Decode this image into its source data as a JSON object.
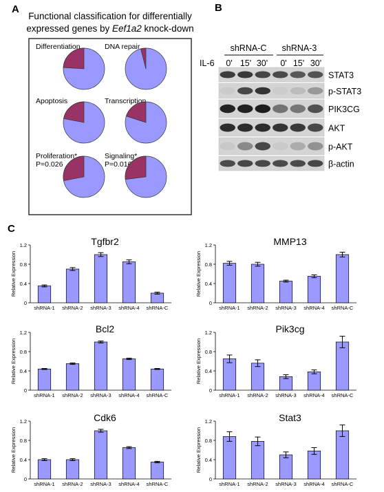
{
  "panels": {
    "a": "A",
    "b": "B",
    "c": "C"
  },
  "panelA": {
    "title_line1": "Functional classification for differentially",
    "title_line2_pre": "expressed genes by ",
    "title_line2_em": "Eef1a2",
    "title_line2_post": " knock-down",
    "pies": [
      {
        "label": "Differentiation",
        "pvalue": "",
        "fraction": 0.24
      },
      {
        "label": "DNA repair",
        "pvalue": "",
        "fraction": 0.04
      },
      {
        "label": "Apoptosis",
        "pvalue": "",
        "fraction": 0.22
      },
      {
        "label": "Transcription",
        "pvalue": "",
        "fraction": 0.2
      },
      {
        "label": "Proliferation*",
        "pvalue": "P=0.026",
        "fraction": 0.28
      },
      {
        "label": "Signaling*",
        "pvalue": "P=0.016",
        "fraction": 0.27
      }
    ],
    "colors": {
      "main": "#9999ff",
      "slice": "#993366"
    }
  },
  "panelB": {
    "treatment": "IL-6",
    "groups": [
      "shRNA-C",
      "shRNA-3"
    ],
    "timepoints": [
      "0'",
      "15'",
      "30'",
      "0'",
      "15'",
      "30'"
    ],
    "rows": [
      {
        "label": "STAT3",
        "intensity": [
          0.78,
          0.8,
          0.74,
          0.7,
          0.64,
          0.66
        ]
      },
      {
        "label": "p-STAT3",
        "intensity": [
          0.05,
          0.72,
          0.82,
          0.04,
          0.12,
          0.3
        ]
      },
      {
        "label": "PIK3CG",
        "intensity": [
          0.9,
          0.92,
          0.94,
          0.5,
          0.48,
          0.68
        ]
      },
      {
        "label": "AKT",
        "intensity": [
          0.86,
          0.86,
          0.86,
          0.82,
          0.8,
          0.72
        ]
      },
      {
        "label": "p-AKT",
        "intensity": [
          0.06,
          0.38,
          0.72,
          0.05,
          0.2,
          0.34
        ]
      },
      {
        "label": "β-actin",
        "intensity": [
          0.7,
          0.72,
          0.72,
          0.7,
          0.7,
          0.72
        ]
      }
    ]
  },
  "chart_data": [
    {
      "type": "bar",
      "title": "Tgfbr2",
      "ylabel": "Relative Expression",
      "categories": [
        "shRNA-1",
        "shRNA-2",
        "shRNA-3",
        "shRNA-4",
        "shRNA-C"
      ],
      "values": [
        0.35,
        0.7,
        1.0,
        0.85,
        0.2
      ],
      "errors": [
        0.02,
        0.03,
        0.04,
        0.04,
        0.02
      ],
      "ylim": [
        0,
        1.2
      ],
      "yticks": [
        "0",
        "0.4",
        "0.8",
        "1.2"
      ],
      "color": "#9999ff"
    },
    {
      "type": "bar",
      "title": "MMP13",
      "ylabel": "Relative Expression",
      "categories": [
        "shRNA-1",
        "shRNA-2",
        "shRNA-3",
        "shRNA-4",
        "shRNA-C"
      ],
      "values": [
        0.82,
        0.8,
        0.45,
        0.55,
        1.0
      ],
      "errors": [
        0.04,
        0.04,
        0.02,
        0.03,
        0.05
      ],
      "ylim": [
        0,
        1.2
      ],
      "yticks": [
        "0",
        "0.4",
        "0.8",
        "1.2"
      ],
      "color": "#9999ff"
    },
    {
      "type": "bar",
      "title": "Bcl2",
      "ylabel": "Relative Expression",
      "categories": [
        "shRNA-1",
        "shRNA-2",
        "shRNA-3",
        "shRNA-4",
        "shRNA-C"
      ],
      "values": [
        0.44,
        0.55,
        1.0,
        0.65,
        0.44
      ],
      "errors": [
        0.01,
        0.015,
        0.02,
        0.015,
        0.01
      ],
      "ylim": [
        0,
        1.2
      ],
      "yticks": [
        "0",
        "0.4",
        "0.8",
        "1.2"
      ],
      "color": "#9999ff"
    },
    {
      "type": "bar",
      "title": "Pik3cg",
      "ylabel": "Relative Expression",
      "categories": [
        "shRNA-1",
        "shRNA-2",
        "shRNA-3",
        "shRNA-4",
        "shRNA-C"
      ],
      "values": [
        0.65,
        0.56,
        0.28,
        0.38,
        1.0
      ],
      "errors": [
        0.08,
        0.07,
        0.04,
        0.04,
        0.12
      ],
      "ylim": [
        0,
        1.2
      ],
      "yticks": [
        "0",
        "0.4",
        "0.8",
        "1.2"
      ],
      "color": "#9999ff"
    },
    {
      "type": "bar",
      "title": "Cdk6",
      "ylabel": "Relative Expression",
      "categories": [
        "shRNA-1",
        "shRNA-2",
        "shRNA-3",
        "shRNA-4",
        "shRNA-C"
      ],
      "values": [
        0.4,
        0.4,
        1.0,
        0.65,
        0.35
      ],
      "errors": [
        0.02,
        0.02,
        0.03,
        0.02,
        0.015
      ],
      "ylim": [
        0,
        1.2
      ],
      "yticks": [
        "0",
        "0.4",
        "0.8",
        "1.2"
      ],
      "color": "#9999ff"
    },
    {
      "type": "bar",
      "title": "Stat3",
      "ylabel": "Relative Expression",
      "categories": [
        "shRNA-1",
        "shRNA-2",
        "shRNA-3",
        "shRNA-4",
        "shRNA-C"
      ],
      "values": [
        0.88,
        0.78,
        0.5,
        0.58,
        1.0
      ],
      "errors": [
        0.1,
        0.09,
        0.06,
        0.07,
        0.12
      ],
      "ylim": [
        0,
        1.2
      ],
      "yticks": [
        "0",
        "0.4",
        "0.8",
        "1.2"
      ],
      "color": "#9999ff"
    }
  ]
}
